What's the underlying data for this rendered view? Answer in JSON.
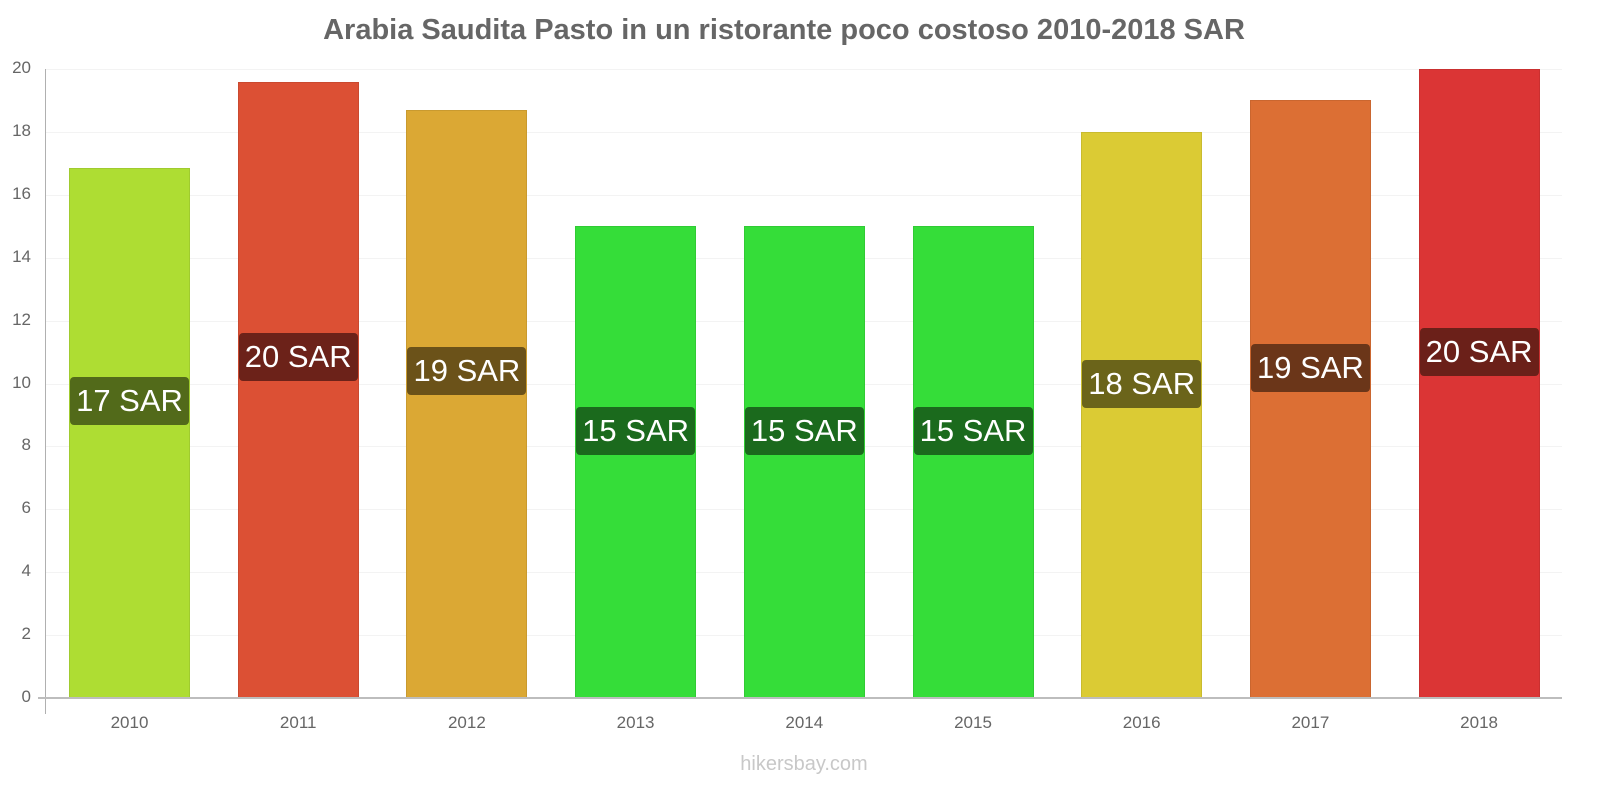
{
  "title": "Arabia Saudita Pasto in un ristorante poco costoso 2010-2018 SAR",
  "footer": "hikersbay.com",
  "chart_data": {
    "type": "bar",
    "title": "Arabia Saudita Pasto in un ristorante poco costoso 2010-2018 SAR",
    "xlabel": "",
    "ylabel": "",
    "ylim": [
      0,
      20
    ],
    "yticks": [
      0,
      2,
      4,
      6,
      8,
      10,
      12,
      14,
      16,
      18,
      20
    ],
    "grid": true,
    "legend": "none",
    "categories": [
      "2010",
      "2011",
      "2012",
      "2013",
      "2014",
      "2015",
      "2016",
      "2017",
      "2018"
    ],
    "values": [
      16.85,
      19.6,
      18.7,
      15,
      15,
      15,
      18,
      19,
      20
    ],
    "data_labels": [
      "17 SAR",
      "20 SAR",
      "19 SAR",
      "15 SAR",
      "15 SAR",
      "15 SAR",
      "18 SAR",
      "19 SAR",
      "20 SAR"
    ],
    "bar_colors": [
      "#aedd33",
      "#dc5034",
      "#dba834",
      "#35dd39",
      "#35dd39",
      "#35dd39",
      "#dbcb34",
      "#dc6f34",
      "#db3535"
    ],
    "label_colors": [
      "#526a1a",
      "#6c2219",
      "#6b5219",
      "#1b6a1d",
      "#1b6a1d",
      "#1b6a1d",
      "#6b641a",
      "#6b3619",
      "#6b2019"
    ],
    "label_center_y": [
      401,
      357,
      371,
      431,
      431,
      431,
      384,
      368,
      352
    ]
  }
}
